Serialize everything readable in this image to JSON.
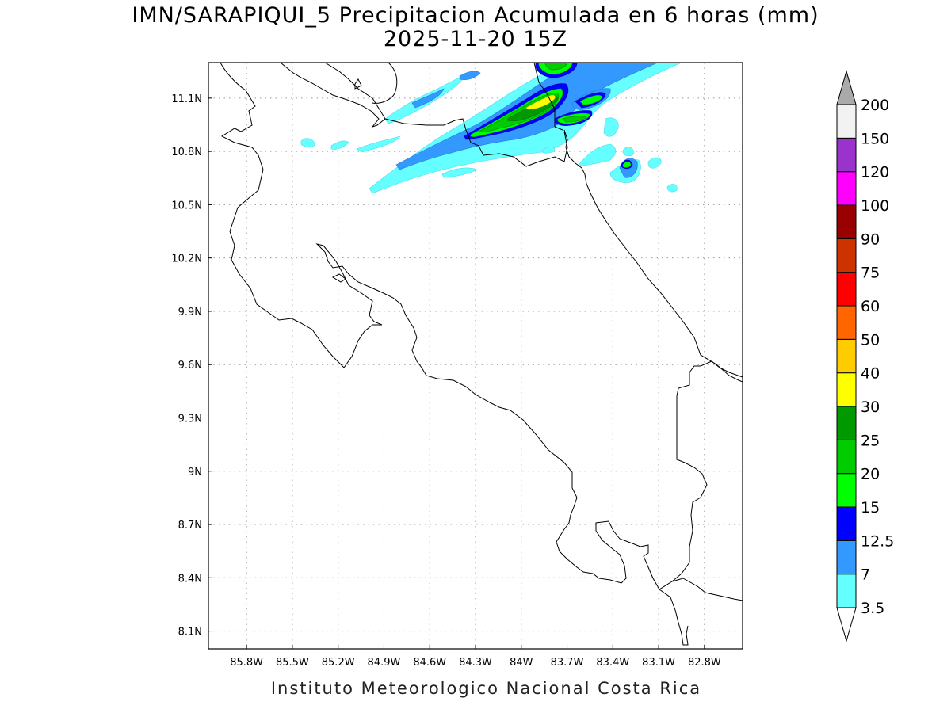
{
  "title": {
    "line1": "IMN/SARAPIQUI_5 Precipitacion Acumulada en 6 horas (mm)",
    "line2": "2025-11-20 15Z"
  },
  "footer": "Instituto Meteorologico Nacional Costa Rica",
  "map": {
    "lon_range": [
      -86.05,
      -82.55
    ],
    "lat_range": [
      8.0,
      11.3
    ],
    "lon_ticks": [
      {
        "value": -85.8,
        "label": "85.8W"
      },
      {
        "value": -85.5,
        "label": "85.5W"
      },
      {
        "value": -85.2,
        "label": "85.2W"
      },
      {
        "value": -84.9,
        "label": "84.9W"
      },
      {
        "value": -84.6,
        "label": "84.6W"
      },
      {
        "value": -84.3,
        "label": "84.3W"
      },
      {
        "value": -84.0,
        "label": "84W"
      },
      {
        "value": -83.7,
        "label": "83.7W"
      },
      {
        "value": -83.4,
        "label": "83.4W"
      },
      {
        "value": -83.1,
        "label": "83.1W"
      },
      {
        "value": -82.8,
        "label": "82.8W"
      }
    ],
    "lat_ticks": [
      {
        "value": 11.1,
        "label": "11.1N"
      },
      {
        "value": 10.8,
        "label": "10.8N"
      },
      {
        "value": 10.5,
        "label": "10.5N"
      },
      {
        "value": 10.2,
        "label": "10.2N"
      },
      {
        "value": 9.9,
        "label": "9.9N"
      },
      {
        "value": 9.6,
        "label": "9.6N"
      },
      {
        "value": 9.3,
        "label": "9.3N"
      },
      {
        "value": 9.0,
        "label": "9N"
      },
      {
        "value": 8.7,
        "label": "8.7N"
      },
      {
        "value": 8.4,
        "label": "8.4N"
      },
      {
        "value": 8.1,
        "label": "8.1N"
      }
    ],
    "grid": "dotted"
  },
  "legend": {
    "unit": "mm",
    "levels": [
      {
        "label": "3.5",
        "color": "#66ffff"
      },
      {
        "label": "7",
        "color": "#3399ff"
      },
      {
        "label": "12.5",
        "color": "#0000ff"
      },
      {
        "label": "15",
        "color": "#00ff00"
      },
      {
        "label": "20",
        "color": "#00cc00"
      },
      {
        "label": "25",
        "color": "#009900"
      },
      {
        "label": "30",
        "color": "#ffff00"
      },
      {
        "label": "40",
        "color": "#ffcc00"
      },
      {
        "label": "50",
        "color": "#ff6600"
      },
      {
        "label": "60",
        "color": "#ff0000"
      },
      {
        "label": "75",
        "color": "#cc3300"
      },
      {
        "label": "90",
        "color": "#990000"
      },
      {
        "label": "100",
        "color": "#ff00ff"
      },
      {
        "label": "120",
        "color": "#9933cc"
      },
      {
        "label": "150",
        "color": "#f2f2f2"
      },
      {
        "label": "200",
        "color": "#aaaaaa"
      }
    ],
    "bin_colors": [
      "#66ffff",
      "#3399ff",
      "#0000ff",
      "#00ff00",
      "#00cc00",
      "#009900",
      "#ffff00",
      "#ffcc00",
      "#ff6600",
      "#ff0000",
      "#cc3300",
      "#990000",
      "#ff00ff",
      "#9933cc",
      "#f2f2f2"
    ]
  }
}
